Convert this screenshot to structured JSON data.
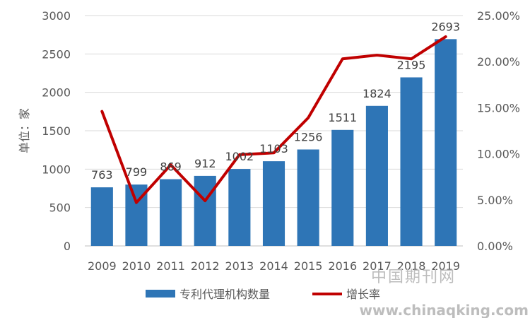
{
  "chart_data": {
    "type": "bar",
    "categories": [
      "2009",
      "2010",
      "2011",
      "2012",
      "2013",
      "2014",
      "2015",
      "2016",
      "2017",
      "2018",
      "2019"
    ],
    "series": [
      {
        "name": "专利代理机构数量",
        "type": "bar",
        "axis": "left",
        "color": "#2E75B6",
        "values": [
          763,
          799,
          869,
          912,
          1002,
          1103,
          1256,
          1511,
          1824,
          2195,
          2693
        ]
      },
      {
        "name": "增长率",
        "type": "line",
        "axis": "right",
        "color": "#C00000",
        "values": [
          14.6,
          4.7,
          8.8,
          4.9,
          9.9,
          10.1,
          13.9,
          20.3,
          20.7,
          20.3,
          22.7
        ]
      }
    ],
    "ylabel": "单位：家",
    "ylim": [
      0,
      3000
    ],
    "yticks": [
      "0",
      "500",
      "1000",
      "1500",
      "2000",
      "2500",
      "3000"
    ],
    "y2lim": [
      0,
      25
    ],
    "y2ticks": [
      "0.00%",
      "5.00%",
      "10.00%",
      "15.00%",
      "20.00%",
      "25.00%"
    ],
    "grid": true,
    "legend": "bottom"
  },
  "watermark": {
    "line1": "中国期刊网",
    "line2": "www.chinaqking.com"
  }
}
